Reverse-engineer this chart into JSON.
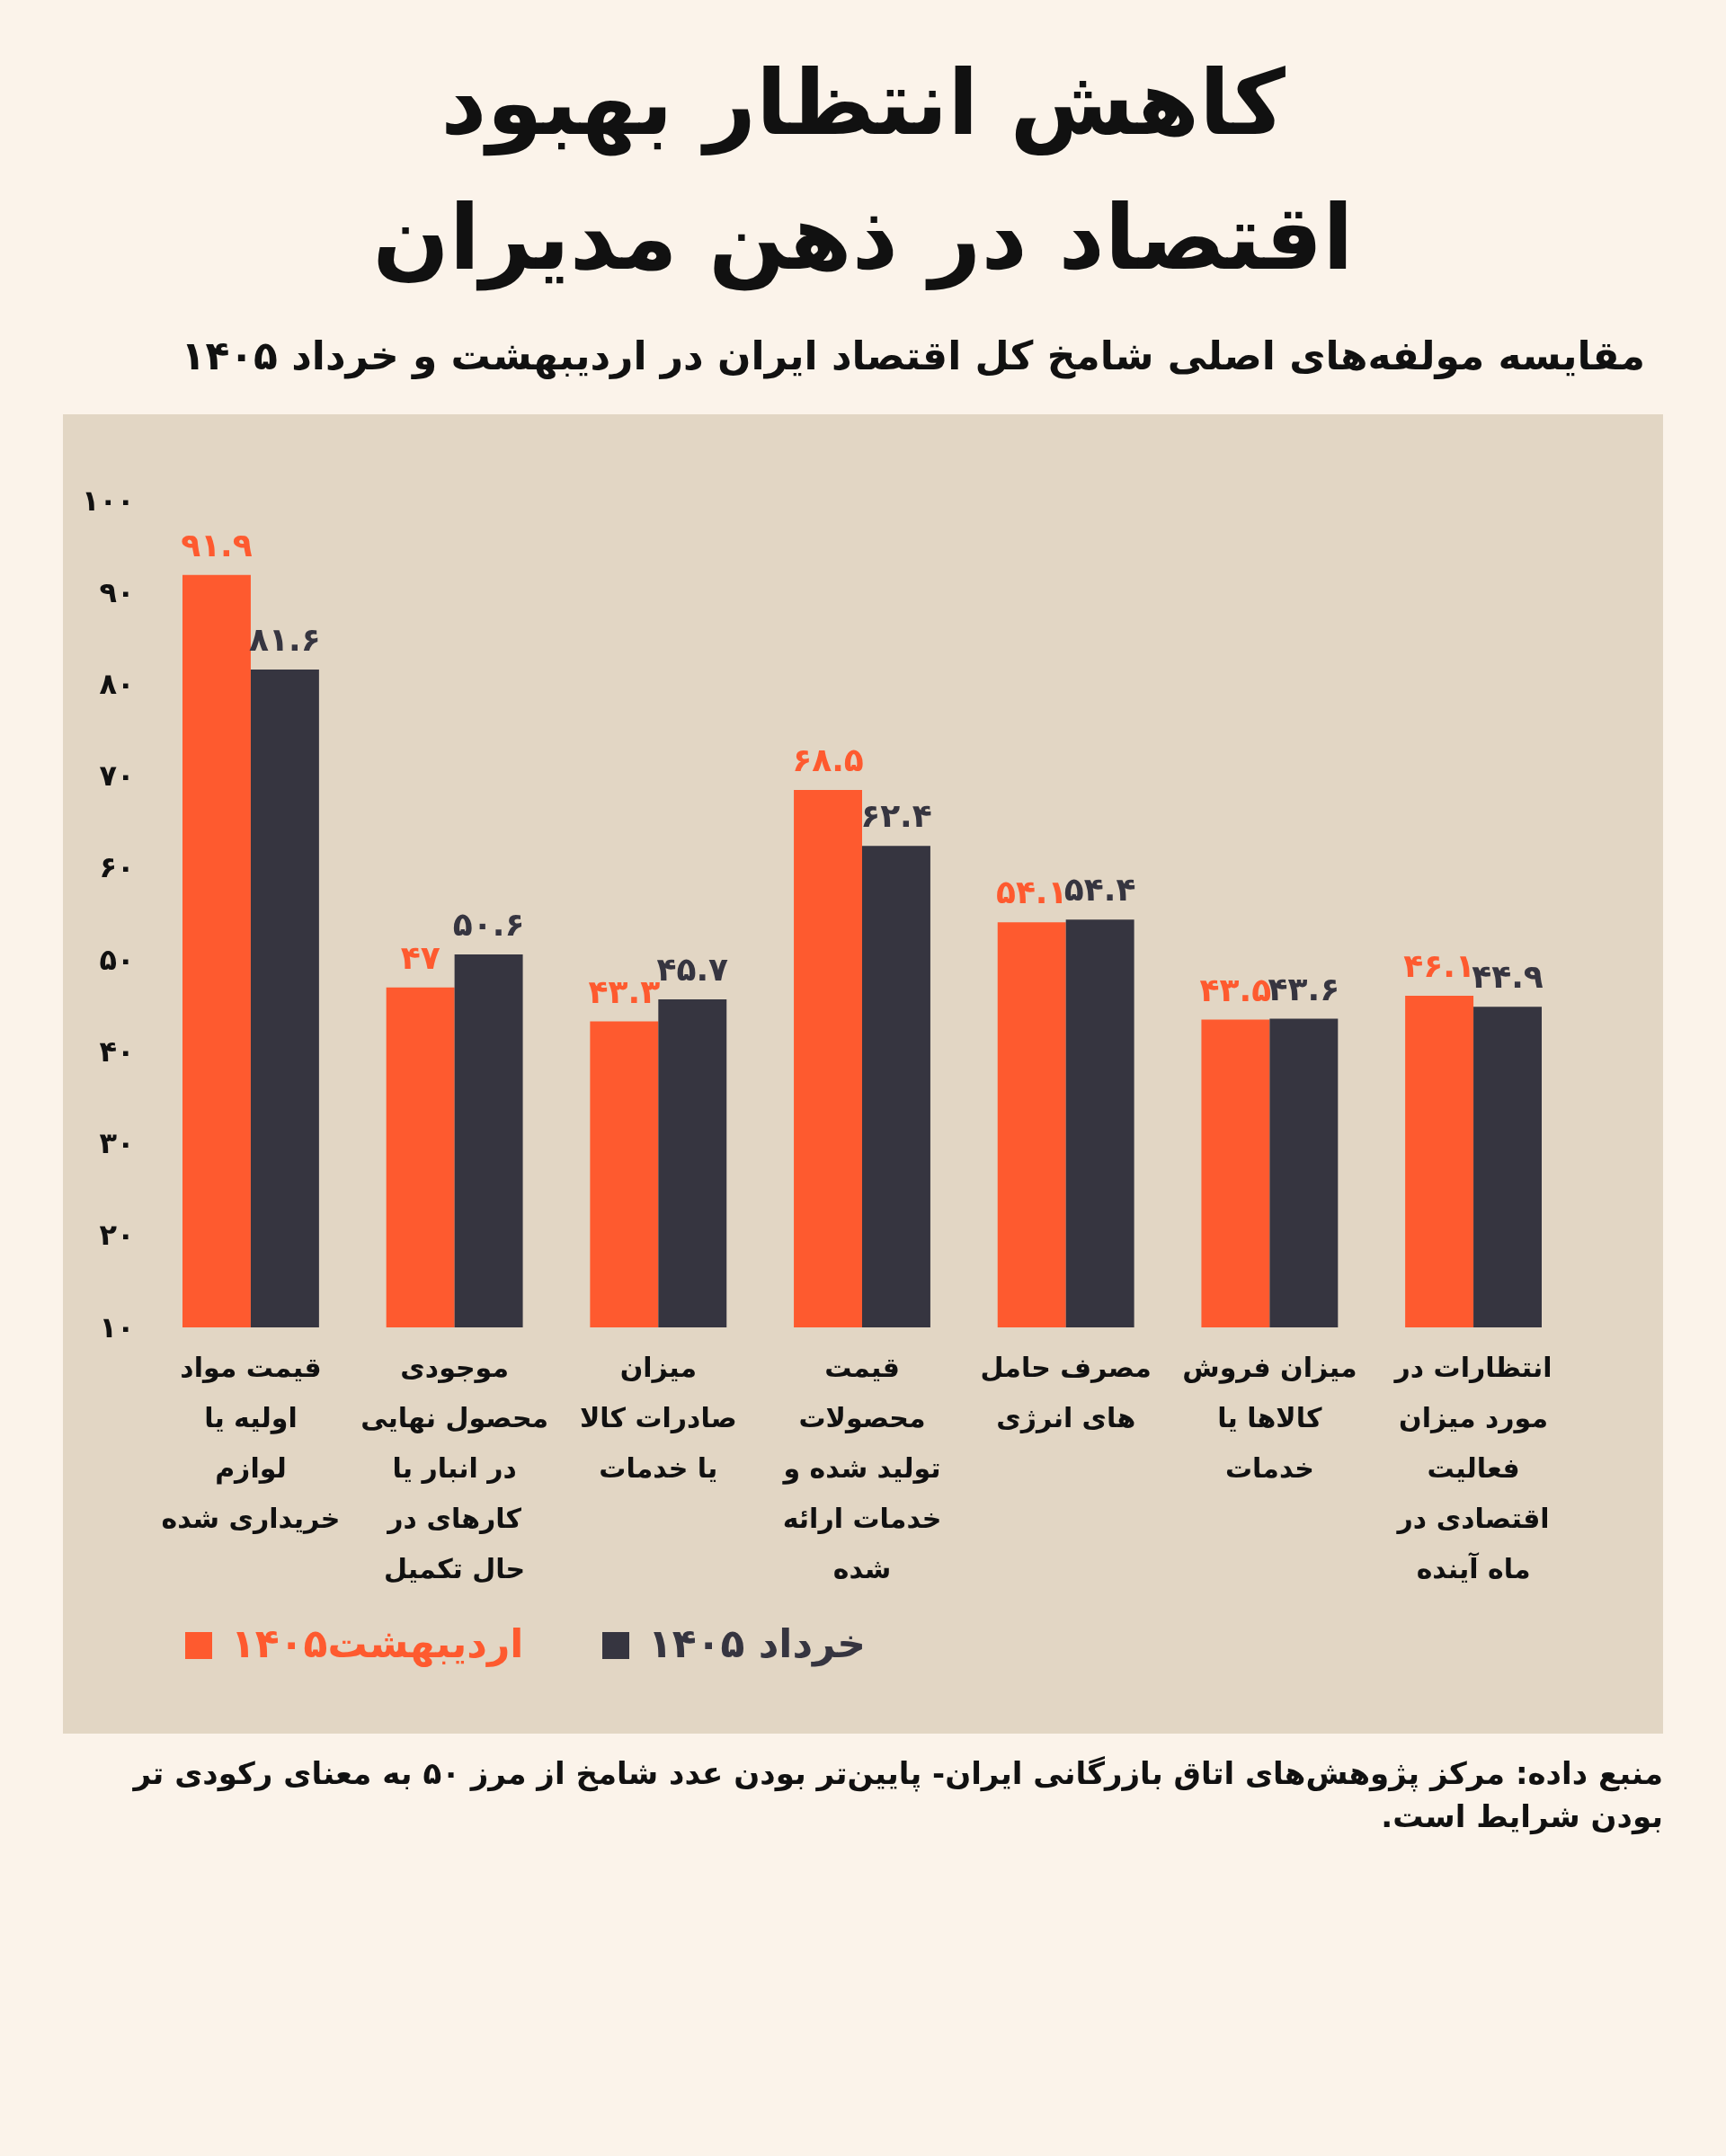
{
  "chart_data": {
    "type": "bar",
    "title": "کاهش انتظار بهبود اقتصاد در ذهن مدیران",
    "subtitle": "مقایسه مولفه‌های اصلی شامخ کل اقتصاد ایران در اردیبهشت و خرداد ۱۴۰۵",
    "categories": [
      "قیمت مواد اولیه یا لوازم خریداری شده",
      "موجودی محصول نهایی در انبار یا کارهای در حال تکمیل",
      "میزان صادرات کالا یا خدمات",
      "قیمت محصولات تولید شده و خدمات ارائه شده",
      "مصرف حامل های انرژی",
      "میزان فروش کالاها یا خدمات",
      "انتظارات در مورد میزان فعالیت اقتصادی در ماه آینده"
    ],
    "series": [
      {
        "name": "اردیبهشت۱۴۰۵",
        "color": "#fe5a2f",
        "values": [
          91.9,
          47,
          43.3,
          68.5,
          54.1,
          43.5,
          46.1
        ],
        "value_labels": [
          "۹۱.۹",
          "۴۷",
          "۴۳.۳",
          "۶۸.۵",
          "۵۴.۱",
          "۴۳.۵",
          "۴۶.۱"
        ]
      },
      {
        "name": "خرداد ۱۴۰۵",
        "color": "#363540",
        "values": [
          81.6,
          50.6,
          45.7,
          62.4,
          54.4,
          43.6,
          44.9
        ],
        "value_labels": [
          "۸۱.۶",
          "۵۰.۶",
          "۴۵.۷",
          "۶۲.۴",
          "۵۴.۴",
          "۴۳.۶",
          "۴۴.۹"
        ]
      }
    ],
    "ylim": [
      10,
      100
    ],
    "yticks": [
      {
        "value": 10,
        "label": "۱۰"
      },
      {
        "value": 20,
        "label": "۲۰"
      },
      {
        "value": 30,
        "label": "۳۰"
      },
      {
        "value": 40,
        "label": "۴۰"
      },
      {
        "value": 50,
        "label": "۵۰"
      },
      {
        "value": 60,
        "label": "۶۰"
      },
      {
        "value": 70,
        "label": "۷۰"
      },
      {
        "value": 80,
        "label": "۸۰"
      },
      {
        "value": 90,
        "label": "۹۰"
      },
      {
        "value": 100,
        "label": "۱۰۰"
      }
    ],
    "grid": false,
    "legend": "bottom",
    "annotations": [
      "منبع داده: مرکز پژوهش‌های اتاق بازرگانی ایران- پایین‌تر بودن عدد شامخ از مرز ۵۰ به معنای رکودی تر بودن شرایط است."
    ]
  }
}
